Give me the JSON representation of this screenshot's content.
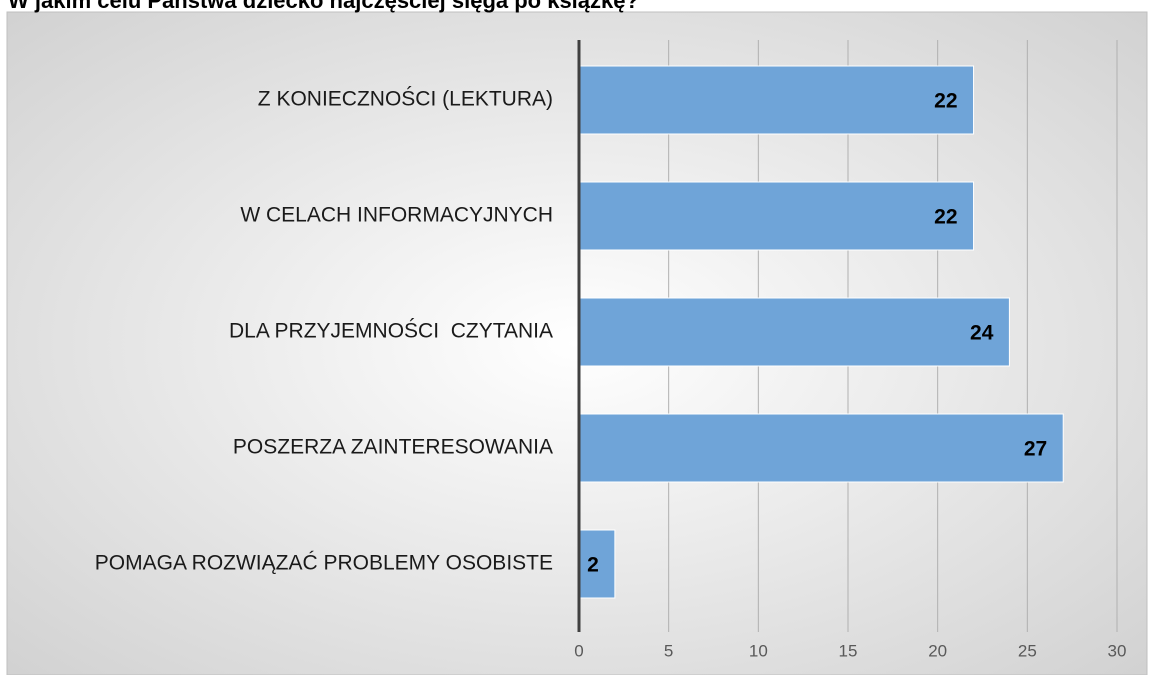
{
  "chart_data": {
    "type": "bar",
    "orientation": "horizontal",
    "title": "W jakim celu Państwa dziecko najczęściej sięga po książkę?",
    "categories": [
      "Z KONIECZNOŚCI (LEKTURA)",
      "W CELACH INFORMACYJNYCH",
      "DLA PRZYJEMNOŚCI  CZYTANIA",
      "POSZERZA ZAINTERESOWANIA",
      "POMAGA ROZWIĄZAĆ PROBLEMY OSOBISTE"
    ],
    "values": [
      22,
      22,
      24,
      27,
      2
    ],
    "color": "#6fa4d8",
    "xlim": [
      0,
      30
    ],
    "xticks": [
      0,
      5,
      10,
      15,
      20,
      25,
      30
    ],
    "grid": true
  }
}
